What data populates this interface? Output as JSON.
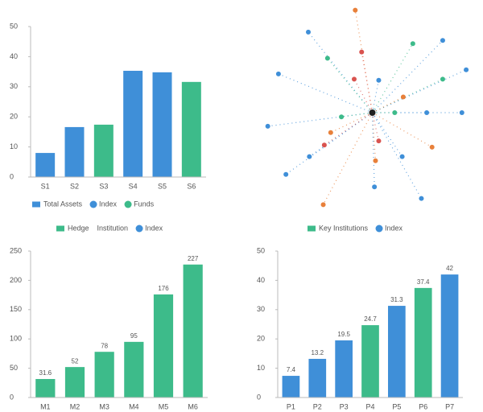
{
  "chart_data": [
    {
      "type": "bar",
      "categories": [
        "S1",
        "S2",
        "S3",
        "S4",
        "S5",
        "S6"
      ],
      "values": [
        8,
        16.6,
        17.4,
        35.3,
        34.8,
        31.6
      ],
      "colors": [
        "#3f8fd8",
        "#3f8fd8",
        "#3dbb8a",
        "#3f8fd8",
        "#3f8fd8",
        "#3dbb8a"
      ],
      "ylim": [
        0,
        50
      ],
      "yticks": [
        0,
        10,
        20,
        30,
        40,
        50
      ],
      "legend": [
        {
          "label": "Total Assets",
          "color": "#3f8fd8",
          "shape": "square"
        },
        {
          "label": "Index",
          "color": "#3f8fd8",
          "shape": "circle"
        },
        {
          "label": "Funds",
          "color": "#3dbb8a",
          "shape": "circle"
        }
      ]
    },
    {
      "type": "scatter",
      "x": [
        -1.6,
        -6.0,
        -4.2,
        -8.8,
        -9.8,
        -8.1,
        -5.9,
        -4.5,
        -4.6,
        0.3,
        0.2,
        4.6,
        2.8,
        5.6,
        8.4,
        5.1,
        6.6,
        8.8,
        3.8,
        6.6,
        -1.0,
        -1.7,
        0.6,
        2.9,
        -2.9,
        2.1,
        0.6,
        -3.9
      ],
      "y": [
        9.8,
        7.7,
        5.2,
        3.7,
        -1.3,
        -5.9,
        -4.2,
        -3.1,
        -8.8,
        -4.6,
        -7.1,
        -8.2,
        -4.2,
        -3.3,
        0,
        0,
        3.2,
        4.1,
        6.6,
        6.9,
        5.8,
        3.2,
        3.1,
        1.5,
        -0.4,
        0,
        -2.7,
        -1.9
      ],
      "colors": [
        "#e8803a",
        "#3f8fd8",
        "#3dbb8a",
        "#3f8fd8",
        "#3f8fd8",
        "#3f8fd8",
        "#3f8fd8",
        "#d9534f",
        "#e8803a",
        "#e8803a",
        "#3f8fd8",
        "#3f8fd8",
        "#3f8fd8",
        "#e8803a",
        "#3f8fd8",
        "#3f8fd8",
        "#3dbb8a",
        "#3f8fd8",
        "#3dbb8a",
        "#3f8fd8",
        "#d9534f",
        "#d9534f",
        "#3f8fd8",
        "#e8803a",
        "#3dbb8a",
        "#3dbb8a",
        "#d9534f",
        "#e8803a"
      ],
      "xlim": [
        -10,
        10
      ],
      "ylim": [
        -10,
        10
      ],
      "legend": [
        {
          "label": "Key Institutions",
          "color": "#3dbb8a",
          "shape": "square"
        },
        {
          "label": "Index",
          "color": "#3f8fd8",
          "shape": "circle"
        }
      ]
    },
    {
      "type": "bar",
      "categories": [
        "M1",
        "M2",
        "M3",
        "M4",
        "M5",
        "M6"
      ],
      "values": [
        31.6,
        52,
        78,
        95,
        176,
        227
      ],
      "colors": [
        "#3dbb8a",
        "#3dbb8a",
        "#3dbb8a",
        "#3dbb8a",
        "#3dbb8a",
        "#3dbb8a"
      ],
      "ylim": [
        0,
        250
      ],
      "yticks": [
        0,
        50,
        100,
        150,
        200,
        250
      ],
      "data_labels": true,
      "legend": [
        {
          "label": "Hedge",
          "color": "#3dbb8a",
          "shape": "square"
        },
        {
          "label": "Institution",
          "color": "#3dbb8a",
          "shape": "none"
        },
        {
          "label": "Index",
          "color": "#3f8fd8",
          "shape": "circle"
        }
      ]
    },
    {
      "type": "bar",
      "categories": [
        "P1",
        "P2",
        "P3",
        "P4",
        "P5",
        "P6",
        "P7"
      ],
      "values": [
        7.4,
        13.2,
        19.5,
        24.7,
        31.3,
        37.4,
        42
      ],
      "colors": [
        "#3f8fd8",
        "#3f8fd8",
        "#3f8fd8",
        "#3dbb8a",
        "#3f8fd8",
        "#3dbb8a",
        "#3f8fd8"
      ],
      "ylim": [
        0,
        50
      ],
      "yticks": [
        0,
        10,
        20,
        30,
        40,
        50
      ],
      "data_labels": true
    }
  ]
}
